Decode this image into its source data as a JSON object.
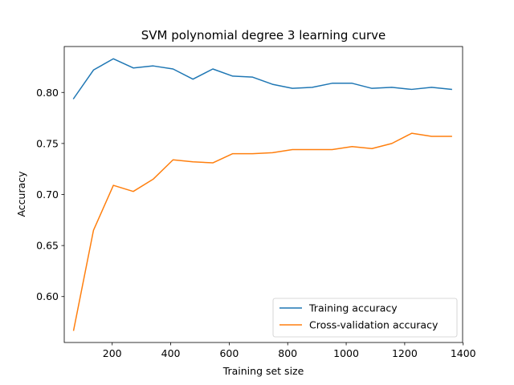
{
  "chart_data": {
    "type": "line",
    "title": "SVM polynomial degree 3 learning curve",
    "xlabel": "Training set size",
    "ylabel": "Accuracy",
    "xlim": [
      36,
      1398
    ],
    "ylim": [
      0.555,
      0.845
    ],
    "xticks": [
      200,
      400,
      600,
      800,
      1000,
      1200,
      1400
    ],
    "xtick_labels": [
      "200",
      "400",
      "600",
      "800",
      "1000",
      "1200",
      "1400"
    ],
    "yticks": [
      0.6,
      0.65,
      0.7,
      0.75,
      0.8
    ],
    "ytick_labels": [
      "0.60",
      "0.65",
      "0.70",
      "0.75",
      "0.80"
    ],
    "grid": false,
    "legend_position": "lower-right",
    "x": [
      68,
      136,
      204,
      272,
      340,
      408,
      476,
      544,
      612,
      680,
      748,
      816,
      884,
      952,
      1020,
      1088,
      1156,
      1224,
      1292,
      1360
    ],
    "series": [
      {
        "name": "Training accuracy",
        "color": "#1f77b4",
        "values": [
          0.794,
          0.822,
          0.833,
          0.824,
          0.826,
          0.823,
          0.813,
          0.823,
          0.816,
          0.815,
          0.808,
          0.804,
          0.805,
          0.809,
          0.809,
          0.804,
          0.805,
          0.803,
          0.805,
          0.803
        ]
      },
      {
        "name": "Cross-validation accuracy",
        "color": "#ff7f0e",
        "values": [
          0.567,
          0.665,
          0.709,
          0.703,
          0.715,
          0.734,
          0.732,
          0.731,
          0.74,
          0.74,
          0.741,
          0.744,
          0.744,
          0.744,
          0.747,
          0.745,
          0.75,
          0.76,
          0.757,
          0.757
        ]
      }
    ]
  }
}
